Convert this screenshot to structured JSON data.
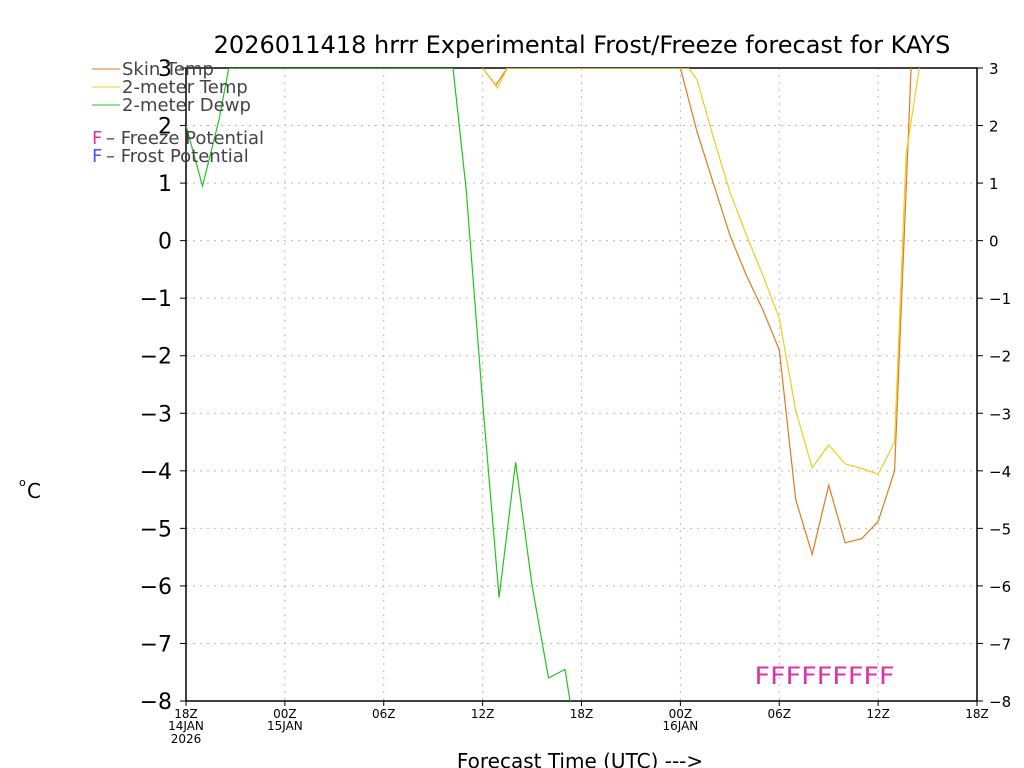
{
  "chart_data": {
    "type": "line",
    "title": "2026011418 hrrr Experimental Frost/Freeze forecast for KAYS",
    "xlabel": "Forecast Time (UTC) --->",
    "ylabel": "°C",
    "ylabel_unit": "o",
    "ylabel_letter": "C",
    "ylim": [
      -8,
      3
    ],
    "xlim": [
      0,
      48
    ],
    "y_ticks": [
      3,
      2,
      1,
      0,
      -1,
      -2,
      -3,
      -4,
      -5,
      -6,
      -7,
      -8
    ],
    "x_ticks": [
      {
        "hour": 0,
        "label": "18Z",
        "sub1": "14JAN",
        "sub2": "2026"
      },
      {
        "hour": 6,
        "label": "00Z",
        "sub1": "15JAN",
        "sub2": ""
      },
      {
        "hour": 12,
        "label": "06Z",
        "sub1": "",
        "sub2": ""
      },
      {
        "hour": 18,
        "label": "12Z",
        "sub1": "",
        "sub2": ""
      },
      {
        "hour": 24,
        "label": "18Z",
        "sub1": "",
        "sub2": ""
      },
      {
        "hour": 30,
        "label": "00Z",
        "sub1": "16JAN",
        "sub2": ""
      },
      {
        "hour": 36,
        "label": "06Z",
        "sub1": "",
        "sub2": ""
      },
      {
        "hour": 42,
        "label": "12Z",
        "sub1": "",
        "sub2": ""
      },
      {
        "hour": 48,
        "label": "18Z",
        "sub1": "",
        "sub2": ""
      }
    ],
    "grid": true,
    "series": [
      {
        "name": "Skin Temp",
        "color": "#e07b20",
        "x": [
          18,
          18.8,
          19.5,
          30,
          31,
          32,
          33,
          34,
          35,
          36,
          37,
          38,
          39,
          40,
          41,
          42,
          43,
          44
        ],
        "values": [
          3.0,
          2.7,
          3.0,
          3.0,
          1.9,
          1.0,
          0.1,
          -0.6,
          -1.2,
          -1.9,
          -4.5,
          -5.45,
          -4.25,
          -5.25,
          -5.18,
          -4.88,
          -4.0,
          3.0
        ]
      },
      {
        "name": "2-meter Temp",
        "color": "#e8d020",
        "x": [
          18,
          18.9,
          19.5,
          30.5,
          31,
          32,
          33,
          34,
          35,
          36,
          37,
          38,
          39,
          40,
          41,
          42,
          43,
          43.7,
          44.5
        ],
        "values": [
          3.0,
          2.65,
          3.0,
          3.0,
          2.8,
          1.8,
          0.85,
          0.1,
          -0.6,
          -1.35,
          -2.95,
          -3.95,
          -3.55,
          -3.88,
          -3.96,
          -4.06,
          -3.5,
          1.5,
          3.0
        ]
      },
      {
        "name": "2-meter Dewp",
        "color": "#22c422",
        "x": [
          0,
          1,
          2,
          2.6,
          16.2,
          17,
          18,
          19,
          20,
          21,
          22,
          23,
          23.3
        ],
        "values": [
          2.0,
          0.95,
          2.1,
          3.0,
          3.0,
          0.9,
          -2.8,
          -6.2,
          -3.85,
          -6.0,
          -7.6,
          -7.45,
          -8.0
        ]
      }
    ],
    "frost_freeze_markers": {
      "text": "FFFFFFFFF",
      "type": "Freeze",
      "color": "#dd33aa",
      "start_hour": 34.5,
      "end_hour": 43,
      "y_value": -7.55
    },
    "legend": {
      "placement": "top-left",
      "items": [
        "Skin Temp",
        "2-meter Temp",
        "2-meter Dewp"
      ],
      "notes": [
        {
          "letter": "F",
          "text": " – Freeze Potential",
          "color": "#dd33aa"
        },
        {
          "letter": "F",
          "text": " – Frost Potential",
          "color": "#4455ee"
        }
      ]
    }
  }
}
